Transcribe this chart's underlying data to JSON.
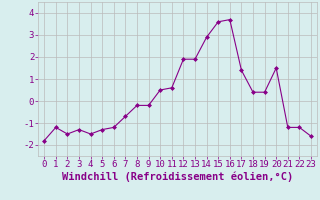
{
  "x": [
    0,
    1,
    2,
    3,
    4,
    5,
    6,
    7,
    8,
    9,
    10,
    11,
    12,
    13,
    14,
    15,
    16,
    17,
    18,
    19,
    20,
    21,
    22,
    23
  ],
  "y": [
    -1.8,
    -1.2,
    -1.5,
    -1.3,
    -1.5,
    -1.3,
    -1.2,
    -0.7,
    -0.2,
    -0.2,
    0.5,
    0.6,
    1.9,
    1.9,
    2.9,
    3.6,
    3.7,
    1.4,
    0.4,
    0.4,
    1.5,
    -1.2,
    -1.2,
    -1.6
  ],
  "line_color": "#880088",
  "marker": "D",
  "marker_size": 2,
  "xlabel": "Windchill (Refroidissement éolien,°C)",
  "ylim": [
    -2.5,
    4.5
  ],
  "xlim": [
    -0.5,
    23.5
  ],
  "yticks": [
    -2,
    -1,
    0,
    1,
    2,
    3,
    4
  ],
  "xticks": [
    0,
    1,
    2,
    3,
    4,
    5,
    6,
    7,
    8,
    9,
    10,
    11,
    12,
    13,
    14,
    15,
    16,
    17,
    18,
    19,
    20,
    21,
    22,
    23
  ],
  "bg_color": "#d8eeee",
  "grid_color": "#bbbbbb",
  "tick_color": "#880088",
  "label_color": "#880088",
  "font_size": 6.5,
  "xlabel_fontsize": 7.5
}
